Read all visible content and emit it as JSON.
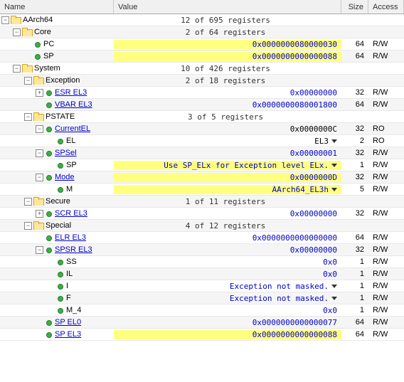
{
  "headers": {
    "name": "Name",
    "value": "Value",
    "size": "Size",
    "access": "Access"
  },
  "tree": [
    {
      "id": "aarch64",
      "indent": 0,
      "exp": "-",
      "icon": "folder",
      "label": "AArch64",
      "link": false,
      "valClass": "summary",
      "value": "12 of 695 registers",
      "size": "",
      "access": "",
      "hl": false,
      "dd": false,
      "alt": false
    },
    {
      "id": "core",
      "indent": 1,
      "exp": "-",
      "icon": "folder",
      "label": "Core",
      "link": false,
      "valClass": "summary",
      "value": "2 of 64 registers",
      "size": "",
      "access": "",
      "hl": false,
      "dd": false,
      "alt": true
    },
    {
      "id": "pc",
      "indent": 2,
      "exp": "",
      "icon": "reg",
      "label": "PC",
      "link": false,
      "valClass": "val-blue",
      "value": "0x0000000080000030",
      "size": "64",
      "access": "R/W",
      "hl": true,
      "dd": false,
      "alt": false
    },
    {
      "id": "sp",
      "indent": 2,
      "exp": "",
      "icon": "reg",
      "label": "SP",
      "link": false,
      "valClass": "val-blue",
      "value": "0x0000000000000088",
      "size": "64",
      "access": "R/W",
      "hl": true,
      "dd": false,
      "alt": true
    },
    {
      "id": "system",
      "indent": 1,
      "exp": "-",
      "icon": "folder",
      "label": "System",
      "link": false,
      "valClass": "summary",
      "value": "10 of 426 registers",
      "size": "",
      "access": "",
      "hl": false,
      "dd": false,
      "alt": false
    },
    {
      "id": "exception",
      "indent": 2,
      "exp": "-",
      "icon": "folder",
      "label": "Exception",
      "link": false,
      "valClass": "summary",
      "value": "2 of 18 registers",
      "size": "",
      "access": "",
      "hl": false,
      "dd": false,
      "alt": true
    },
    {
      "id": "esr-el3",
      "indent": 3,
      "exp": "+",
      "icon": "reg",
      "label": "ESR EL3",
      "link": true,
      "valClass": "val-blue",
      "value": "0x00000000",
      "size": "32",
      "access": "R/W",
      "hl": false,
      "dd": false,
      "alt": false
    },
    {
      "id": "vbar-el3",
      "indent": 3,
      "exp": "",
      "icon": "reg",
      "label": "VBAR EL3",
      "link": true,
      "valClass": "val-blue",
      "value": "0x0000000080001800",
      "size": "64",
      "access": "R/W",
      "hl": false,
      "dd": false,
      "alt": true
    },
    {
      "id": "pstate",
      "indent": 2,
      "exp": "-",
      "icon": "folder",
      "label": "PSTATE",
      "link": false,
      "valClass": "summary",
      "value": "3 of 5 registers",
      "size": "",
      "access": "",
      "hl": false,
      "dd": false,
      "alt": false
    },
    {
      "id": "currentel",
      "indent": 3,
      "exp": "-",
      "icon": "reg",
      "label": "CurrentEL",
      "link": true,
      "valClass": "",
      "value": "0x0000000C",
      "size": "32",
      "access": "RO",
      "hl": false,
      "dd": false,
      "alt": true
    },
    {
      "id": "el",
      "indent": 4,
      "exp": "",
      "icon": "reg",
      "label": "EL",
      "link": false,
      "valClass": "",
      "value": "EL3",
      "size": "2",
      "access": "RO",
      "hl": false,
      "dd": true,
      "alt": false
    },
    {
      "id": "spsel",
      "indent": 3,
      "exp": "-",
      "icon": "reg",
      "label": "SPSel",
      "link": true,
      "valClass": "val-blue",
      "value": "0x00000001",
      "size": "32",
      "access": "R/W",
      "hl": false,
      "dd": false,
      "alt": true
    },
    {
      "id": "spsel-sp",
      "indent": 4,
      "exp": "",
      "icon": "reg",
      "label": "SP",
      "link": false,
      "valClass": "val-blue",
      "value": "Use SP_ELx for Exception level ELx.",
      "size": "1",
      "access": "R/W",
      "hl": true,
      "dd": true,
      "alt": false
    },
    {
      "id": "mode",
      "indent": 3,
      "exp": "-",
      "icon": "reg",
      "label": "Mode",
      "link": true,
      "valClass": "val-blue",
      "value": "0x0000000D",
      "size": "32",
      "access": "R/W",
      "hl": true,
      "dd": false,
      "alt": true
    },
    {
      "id": "mode-m",
      "indent": 4,
      "exp": "",
      "icon": "reg",
      "label": "M",
      "link": false,
      "valClass": "val-blue",
      "value": "AArch64_EL3h",
      "size": "5",
      "access": "R/W",
      "hl": true,
      "dd": true,
      "alt": false
    },
    {
      "id": "secure",
      "indent": 2,
      "exp": "-",
      "icon": "folder",
      "label": "Secure",
      "link": false,
      "valClass": "summary",
      "value": "1 of 11 registers",
      "size": "",
      "access": "",
      "hl": false,
      "dd": false,
      "alt": true
    },
    {
      "id": "scr-el3",
      "indent": 3,
      "exp": "+",
      "icon": "reg",
      "label": "SCR EL3",
      "link": true,
      "valClass": "val-blue",
      "value": "0x00000000",
      "size": "32",
      "access": "R/W",
      "hl": false,
      "dd": false,
      "alt": false
    },
    {
      "id": "special",
      "indent": 2,
      "exp": "-",
      "icon": "folder",
      "label": "Special",
      "link": false,
      "valClass": "summary",
      "value": "4 of 12 registers",
      "size": "",
      "access": "",
      "hl": false,
      "dd": false,
      "alt": true
    },
    {
      "id": "elr-el3",
      "indent": 3,
      "exp": "",
      "icon": "reg",
      "label": "ELR EL3",
      "link": true,
      "valClass": "val-blue",
      "value": "0x0000000000000000",
      "size": "64",
      "access": "R/W",
      "hl": false,
      "dd": false,
      "alt": false
    },
    {
      "id": "spsr-el3",
      "indent": 3,
      "exp": "-",
      "icon": "reg",
      "label": "SPSR EL3",
      "link": true,
      "valClass": "val-blue",
      "value": "0x00000000",
      "size": "32",
      "access": "R/W",
      "hl": false,
      "dd": false,
      "alt": true
    },
    {
      "id": "ss",
      "indent": 4,
      "exp": "",
      "icon": "reg",
      "label": "SS",
      "link": false,
      "valClass": "val-blue",
      "value": "0x0",
      "size": "1",
      "access": "R/W",
      "hl": false,
      "dd": false,
      "alt": false
    },
    {
      "id": "il",
      "indent": 4,
      "exp": "",
      "icon": "reg",
      "label": "IL",
      "link": false,
      "valClass": "val-blue",
      "value": "0x0",
      "size": "1",
      "access": "R/W",
      "hl": false,
      "dd": false,
      "alt": true
    },
    {
      "id": "i",
      "indent": 4,
      "exp": "",
      "icon": "reg",
      "label": "I",
      "link": false,
      "valClass": "val-blue",
      "value": "Exception not masked.",
      "size": "1",
      "access": "R/W",
      "hl": false,
      "dd": true,
      "alt": false
    },
    {
      "id": "f",
      "indent": 4,
      "exp": "",
      "icon": "reg",
      "label": "F",
      "link": false,
      "valClass": "val-blue",
      "value": "Exception not masked.",
      "size": "1",
      "access": "R/W",
      "hl": false,
      "dd": true,
      "alt": true
    },
    {
      "id": "m4",
      "indent": 4,
      "exp": "",
      "icon": "reg",
      "label": "M_4",
      "link": false,
      "valClass": "val-blue",
      "value": "0x0",
      "size": "1",
      "access": "R/W",
      "hl": false,
      "dd": false,
      "alt": false
    },
    {
      "id": "sp-el0",
      "indent": 3,
      "exp": "",
      "icon": "reg",
      "label": "SP EL0",
      "link": true,
      "valClass": "val-blue",
      "value": "0x0000000000000077",
      "size": "64",
      "access": "R/W",
      "hl": false,
      "dd": false,
      "alt": true
    },
    {
      "id": "sp-el3",
      "indent": 3,
      "exp": "",
      "icon": "reg",
      "label": "SP EL3",
      "link": true,
      "valClass": "val-blue",
      "value": "0x0000000000000088",
      "size": "64",
      "access": "R/W",
      "hl": true,
      "dd": false,
      "alt": false
    }
  ]
}
